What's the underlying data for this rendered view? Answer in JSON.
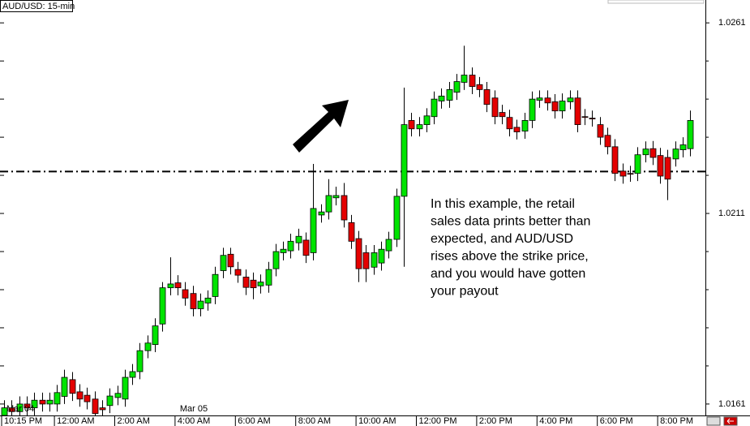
{
  "chart_data": {
    "type": "candlestick",
    "title": "AUD/USD: 15-min",
    "annotation": [
      "In this example, the retail",
      "sales data prints better  than",
      "expected, and AUD/USD",
      "rises above the strike price,",
      "and you would have gotten",
      "your payout"
    ],
    "categories": [
      "10:15 PM",
      null,
      null,
      null,
      null,
      null,
      null,
      "12:00 AM",
      null,
      null,
      null,
      null,
      null,
      null,
      null,
      "2:00 AM",
      null,
      null,
      null,
      null,
      null,
      null,
      null,
      "4:00 AM",
      null,
      null,
      null,
      null,
      null,
      null,
      null,
      "6:00 AM",
      null,
      null,
      null,
      null,
      null,
      null,
      null,
      "8:00 AM",
      null,
      null,
      null,
      null,
      null,
      null,
      null,
      "10:00 AM",
      null,
      null,
      null,
      null,
      null,
      null,
      null,
      "12:00 PM",
      null,
      null,
      null,
      null,
      null,
      null,
      null,
      "2:00 PM",
      null,
      null,
      null,
      null,
      null,
      null,
      null,
      "4:00 PM",
      null,
      null,
      null,
      null,
      null,
      null,
      null,
      "6:00 PM",
      null,
      null,
      null,
      null,
      null,
      null,
      null,
      "8:00 PM",
      null,
      null,
      null,
      null
    ],
    "date_labels": [
      {
        "index": 0,
        "label": "Mar 04"
      },
      {
        "index": 23,
        "label": "Mar 05"
      }
    ],
    "open": [
      1.0158,
      1.016,
      1.0159,
      1.0161,
      1.016,
      1.0162,
      1.0161,
      1.0161,
      1.0163,
      1.01674,
      1.01642,
      1.01633,
      1.01623,
      1.016,
      1.01606,
      1.01627,
      1.01623,
      1.0168,
      1.01695,
      1.0175,
      1.01766,
      1.0182,
      1.01915,
      1.01928,
      1.0191,
      1.019,
      1.0186,
      1.01875,
      1.01892,
      1.0196,
      1.02003,
      1.01963,
      1.01943,
      1.01935,
      1.0192,
      1.01922,
      1.01965,
      1.02007,
      1.02012,
      1.02033,
      1.0204,
      1.02007,
      1.02106,
      1.02114,
      1.02151,
      1.02157,
      1.02086,
      1.02044,
      1.02007,
      1.01969,
      1.0198,
      1.02012,
      1.02042,
      1.02155,
      1.02354,
      1.02332,
      1.02343,
      1.02364,
      1.02405,
      1.02407,
      1.02428,
      1.02454,
      1.02473,
      1.02448,
      1.02435,
      1.02413,
      1.02375,
      1.02362,
      1.02336,
      1.02326,
      1.02354,
      1.02407,
      1.02413,
      1.02403,
      1.02379,
      1.02403,
      1.02413,
      1.02364,
      1.0236,
      1.02343,
      1.02315,
      1.02285,
      1.02221,
      1.02215,
      1.02215,
      1.02264,
      1.0228,
      1.02262,
      1.02257,
      1.02253,
      1.02277,
      1.0228
    ],
    "high": [
      1.0162,
      1.0162,
      1.0163,
      1.0163,
      1.0164,
      1.0164,
      1.0164,
      1.0166,
      1.017,
      1.01694,
      1.01662,
      1.01653,
      1.01643,
      1.0162,
      1.01651,
      1.01658,
      1.017,
      1.01715,
      1.0177,
      1.0179,
      1.01835,
      1.0193,
      1.01995,
      1.01948,
      1.0193,
      1.0192,
      1.019,
      1.01908,
      1.0197,
      1.0202,
      1.0202,
      1.01983,
      1.01963,
      1.01955,
      1.0195,
      1.01983,
      1.0203,
      1.02036,
      1.02057,
      1.0207,
      1.0206,
      1.0224,
      1.02134,
      1.022,
      1.0218,
      1.0219,
      1.02106,
      1.02064,
      1.02027,
      1.02027,
      1.02036,
      1.02062,
      1.02175,
      1.0244,
      1.02374,
      1.02363,
      1.02386,
      1.0243,
      1.02438,
      1.02455,
      1.02476,
      1.0255,
      1.02493,
      1.02468,
      1.02455,
      1.02433,
      1.02395,
      1.02382,
      1.02356,
      1.02374,
      1.0243,
      1.02433,
      1.02433,
      1.02423,
      1.02425,
      1.02433,
      1.02433,
      1.02384,
      1.0238,
      1.02363,
      1.02335,
      1.02305,
      1.02241,
      1.02235,
      1.02284,
      1.02299,
      1.023,
      1.02282,
      1.02277,
      1.02299,
      1.0231,
      1.0238
    ],
    "low": [
      1.0156,
      1.0157,
      1.0157,
      1.0158,
      1.0158,
      1.0159,
      1.0159,
      1.0159,
      1.0161,
      1.01618,
      1.01603,
      1.01596,
      1.01565,
      1.01575,
      1.01586,
      1.01607,
      1.01603,
      1.0166,
      1.01675,
      1.0173,
      1.01746,
      1.018,
      1.01895,
      1.01895,
      1.01868,
      1.0184,
      1.0184,
      1.01855,
      1.01872,
      1.0194,
      1.0195,
      1.01928,
      1.01896,
      1.01885,
      1.019,
      1.01902,
      1.01945,
      1.01987,
      1.01992,
      1.02013,
      1.0198,
      1.01987,
      1.02086,
      1.02094,
      1.02131,
      1.02073,
      1.02017,
      1.0193,
      1.0193,
      1.01949,
      1.0196,
      1.01992,
      1.02022,
      1.0197,
      1.02312,
      1.02312,
      1.02323,
      1.02344,
      1.02385,
      1.02387,
      1.02408,
      1.02434,
      1.02423,
      1.02415,
      1.02376,
      1.02344,
      1.02344,
      1.02312,
      1.02304,
      1.02306,
      1.02334,
      1.02387,
      1.0238,
      1.02359,
      1.02359,
      1.02383,
      1.02323,
      1.02342,
      1.02338,
      1.0229,
      1.02265,
      1.02195,
      1.02188,
      1.02193,
      1.02195,
      1.02244,
      1.02237,
      1.02188,
      1.02145,
      1.02233,
      1.02257,
      1.0226
    ],
    "close": [
      1.016,
      1.0159,
      1.0161,
      1.016,
      1.0162,
      1.0161,
      1.0162,
      1.0164,
      1.0168,
      1.01638,
      1.01623,
      1.01616,
      1.01585,
      1.01595,
      1.01631,
      1.01638,
      1.0168,
      1.01695,
      1.0175,
      1.0177,
      1.01815,
      1.01915,
      1.01925,
      1.01915,
      1.01888,
      1.0186,
      1.0188,
      1.01888,
      1.0195,
      1.02,
      1.0197,
      1.01948,
      1.01916,
      1.01915,
      1.0193,
      1.01963,
      1.0201,
      1.02016,
      1.02037,
      1.0205,
      1.02,
      1.02123,
      1.02114,
      1.02157,
      1.02157,
      1.02093,
      1.02037,
      1.01965,
      1.01965,
      1.02007,
      1.02016,
      1.02042,
      1.02155,
      1.02343,
      1.02332,
      1.02343,
      1.02366,
      1.0241,
      1.02418,
      1.02435,
      1.02456,
      1.02473,
      1.02443,
      1.02435,
      1.02396,
      1.02364,
      1.02364,
      1.02332,
      1.02324,
      1.02354,
      1.0241,
      1.02413,
      1.024,
      1.02379,
      1.02405,
      1.02413,
      1.02343,
      1.02362,
      1.02358,
      1.0231,
      1.02285,
      1.02215,
      1.02208,
      1.02213,
      1.02264,
      1.02279,
      1.02257,
      1.02208,
      1.022,
      1.02279,
      1.0229,
      1.02354
    ],
    "up_color": "#00e400",
    "down_color": "#e40000",
    "strike_level": 1.0222,
    "ylim": [
      1.0158,
      1.0267
    ],
    "yticks": [
      1.0161,
      1.0211,
      1.0261
    ],
    "yminorticks": [
      1.0171,
      1.0181,
      1.0191,
      1.0201,
      1.0221,
      1.0231,
      1.0241,
      1.0251
    ]
  }
}
